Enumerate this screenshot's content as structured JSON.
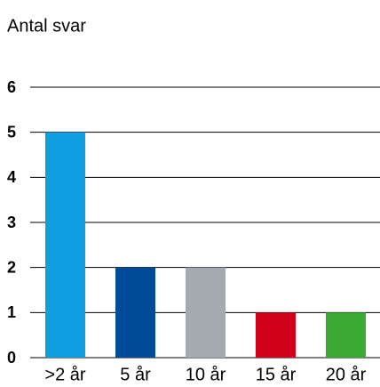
{
  "chart_data": {
    "type": "bar",
    "title": "Antal svar",
    "categories": [
      ">2 år",
      "5 år",
      "10 år",
      "15 år",
      "20 år"
    ],
    "values": [
      5,
      2,
      2,
      1,
      1
    ],
    "colors": [
      "#0f9ee0",
      "#004a97",
      "#a3aab0",
      "#d0021b",
      "#3aaa35"
    ],
    "ylim": [
      0,
      6
    ],
    "yticks": [
      0,
      1,
      2,
      3,
      4,
      5,
      6
    ],
    "grid": true
  }
}
